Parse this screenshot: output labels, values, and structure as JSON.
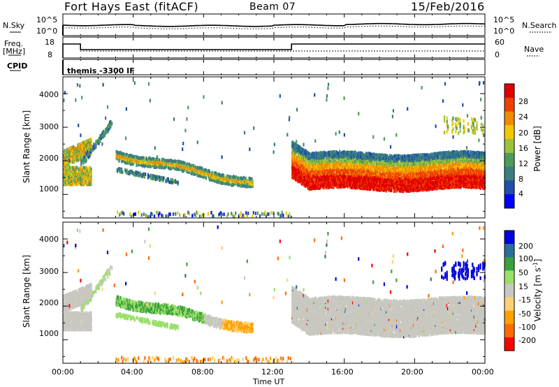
{
  "header": {
    "station": "Fort Hays East (fitACF)",
    "beam": "Beam 07",
    "date": "15/Feb/2016"
  },
  "summary_panels": {
    "nsky_label": "N.Sky",
    "nsearch_label": "N.Search",
    "noise_ticks": [
      "10^5",
      "10^0"
    ],
    "freq_label": "Freq.",
    "freq_unit": "[MHz]",
    "freq_ticks": [
      "18",
      "8"
    ],
    "nave_label": "Nave",
    "nave_ticks": [
      "60",
      "0"
    ],
    "cpid_label": "CPID",
    "cpid_text": "themis -3300 IF"
  },
  "colors": {
    "power_scale": [
      "#0000ff",
      "#1f4fa8",
      "#3a7f7f",
      "#4f9a5a",
      "#9bc23a",
      "#f0c800",
      "#f08a00",
      "#f04000",
      "#e00000"
    ],
    "velocity_scale": [
      "#ff0000",
      "#ff6a00",
      "#ffa000",
      "#ffd070",
      "#c8c8c0",
      "#9adf6a",
      "#3aa03a",
      "#2a6e9a",
      "#0000e0"
    ]
  },
  "chart_data": [
    {
      "type": "heatmap",
      "name": "power",
      "ylabel": "Slant Range [km]",
      "yticks": [
        "4000",
        "3000",
        "2000",
        "1000"
      ],
      "ylim": [
        300,
        4500
      ],
      "colorbar_label": "Power [dB]",
      "colorbar_ticks": [
        "28",
        "24",
        "20",
        "16",
        "12",
        "8",
        "4"
      ],
      "clim": [
        0,
        30
      ]
    },
    {
      "type": "heatmap",
      "name": "velocity",
      "ylabel": "Slant Range [km]",
      "yticks": [
        "4000",
        "3000",
        "2000",
        "1000"
      ],
      "ylim": [
        300,
        4500
      ],
      "colorbar_label": "Velocity [m s",
      "colorbar_label_sup": "-1",
      "colorbar_label_end": "]",
      "colorbar_ticks": [
        "200",
        "100",
        "50",
        "15",
        "-15",
        "-50",
        "-100",
        "-200"
      ],
      "xlabel": "Time UT",
      "xticks": [
        "00:00",
        "04:00",
        "08:00",
        "12:00",
        "16:00",
        "20:00",
        "00:00"
      ],
      "xlim": [
        0,
        24
      ]
    }
  ]
}
